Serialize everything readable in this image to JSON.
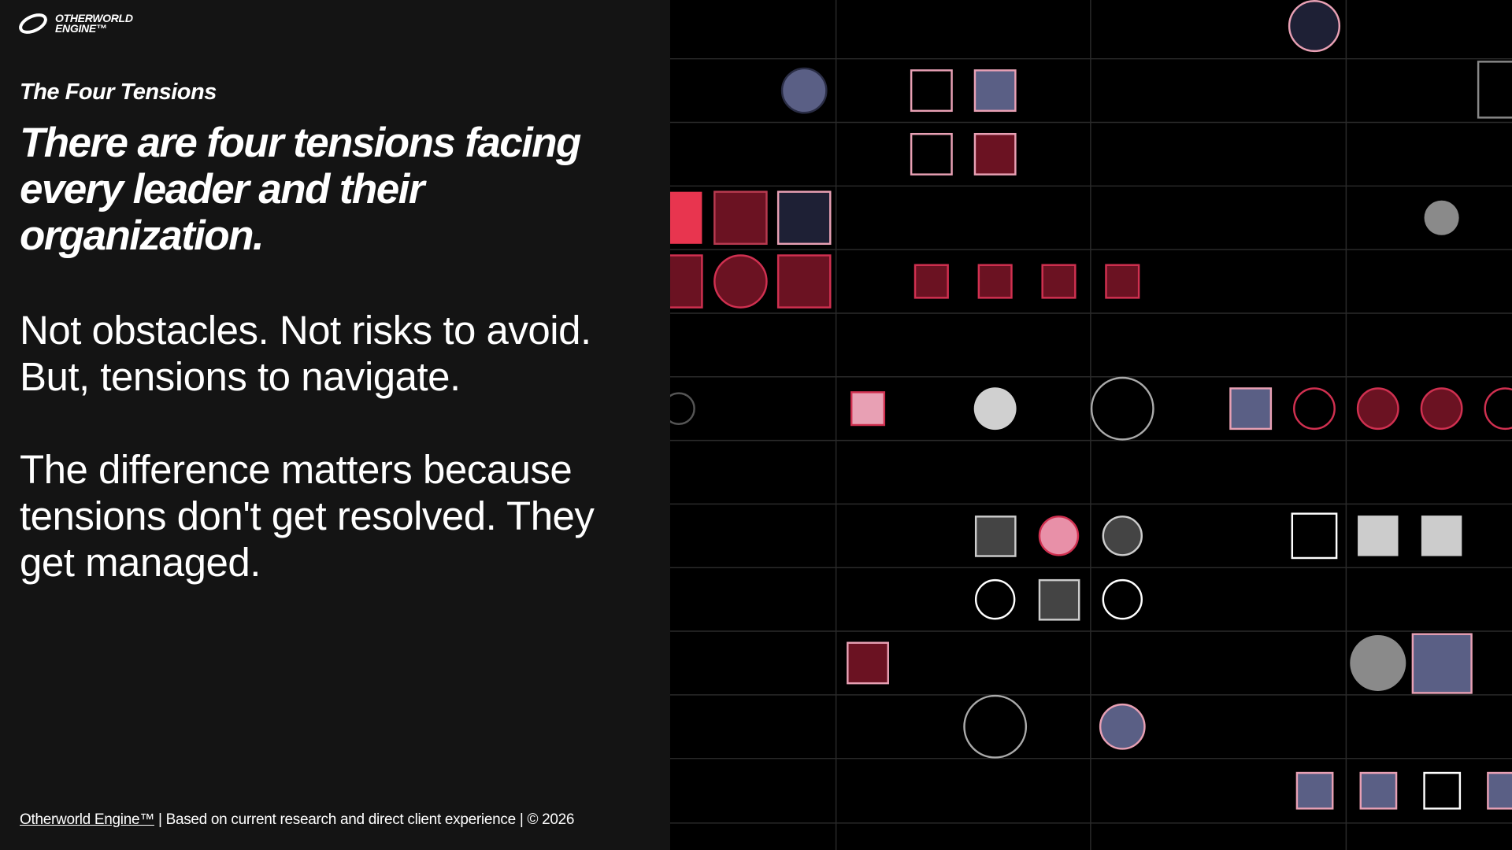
{
  "logo": {
    "line1": "OTHERWORLD",
    "line2": "ENGINE™"
  },
  "eyebrow": "The Four Tensions",
  "headline": "There are four tensions facing every leader and their organization.",
  "paragraphs": [
    "Not obstacles. Not risks to avoid. But, tensions to navigate.",
    "The difference matters because tensions don't get resolved. They get managed."
  ],
  "footer": {
    "link": "Otherworld Engine™",
    "text": "| Based on current research and direct client experience | © 2026"
  }
}
